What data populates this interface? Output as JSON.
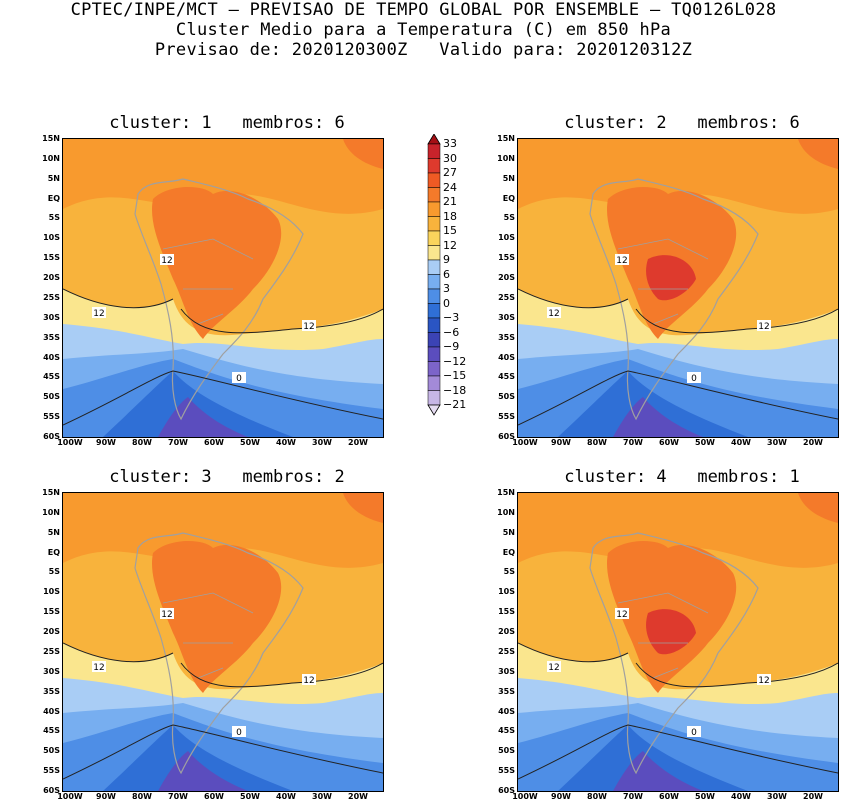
{
  "header": {
    "line1": "CPTEC/INPE/MCT — PREVISAO DE TEMPO GLOBAL POR ENSEMBLE — TQ0126L028",
    "line2": "Cluster Medio para a Temperatura (C) em 850 hPa",
    "line3": "Previsao de: 2020120300Z   Valido para: 2020120312Z"
  },
  "panels": [
    {
      "title": "cluster: 1   membros: 6",
      "contour_labels": [
        "12",
        "12",
        "12",
        "0"
      ]
    },
    {
      "title": "cluster: 2   membros: 6",
      "contour_labels": [
        "12",
        "12",
        "12",
        "0"
      ]
    },
    {
      "title": "cluster: 3   membros: 2",
      "contour_labels": [
        "12",
        "12",
        "12",
        "0"
      ]
    },
    {
      "title": "cluster: 4   membros: 1",
      "contour_labels": [
        "12",
        "12",
        "12",
        "0"
      ]
    }
  ],
  "lat_labels": [
    "15N",
    "10N",
    "5N",
    "EQ",
    "5S",
    "10S",
    "15S",
    "20S",
    "25S",
    "30S",
    "35S",
    "40S",
    "45S",
    "50S",
    "55S",
    "60S"
  ],
  "lon_labels": [
    "100W",
    "90W",
    "80W",
    "70W",
    "60W",
    "50W",
    "40W",
    "30W",
    "20W"
  ],
  "colorbar": {
    "levels": [
      "33",
      "30",
      "27",
      "24",
      "21",
      "18",
      "15",
      "12",
      "9",
      "6",
      "3",
      "0",
      "−3",
      "−6",
      "−9",
      "−12",
      "−15",
      "−18",
      "−21"
    ],
    "colors": [
      "#a50f15",
      "#c8232b",
      "#de3a2d",
      "#ef5a24",
      "#f47a2a",
      "#f89a2e",
      "#f8b33c",
      "#fad45c",
      "#fae68e",
      "#a9cdf5",
      "#77aef0",
      "#4e8ee6",
      "#2f6fd6",
      "#2a55c3",
      "#3b43b5",
      "#5b4dbe",
      "#7c64c9",
      "#a38ad8",
      "#c7b6e6",
      "#e6dcf2"
    ]
  }
}
